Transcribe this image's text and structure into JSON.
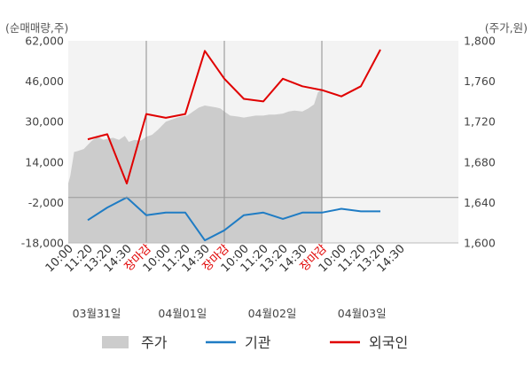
{
  "chart_data": {
    "type": "line",
    "left_axis_label": "(순매매량,주)",
    "right_axis_label": "(주가,원)",
    "left_ylim": [
      -18000,
      62000
    ],
    "left_ticks": [
      "62,000",
      "46,000",
      "30,000",
      "14,000",
      "-2,000",
      "-18,000"
    ],
    "left_tick_values": [
      62000,
      46000,
      30000,
      14000,
      -2000,
      -18000
    ],
    "right_ylim": [
      1600,
      1800
    ],
    "right_ticks": [
      "1,800",
      "1,760",
      "1,720",
      "1,680",
      "1,640",
      "1,600"
    ],
    "right_tick_values": [
      1800,
      1760,
      1720,
      1680,
      1640,
      1600
    ],
    "x_slots": 20,
    "x_tick_labels": [
      {
        "slot": 0,
        "text": "10:00",
        "color": "#333333"
      },
      {
        "slot": 1,
        "text": "11:20",
        "color": "#333333"
      },
      {
        "slot": 2,
        "text": "13:20",
        "color": "#333333"
      },
      {
        "slot": 3,
        "text": "14:30",
        "color": "#333333"
      },
      {
        "slot": 4,
        "text": "장마감",
        "color": "#e00000"
      },
      {
        "slot": 5,
        "text": "10:00",
        "color": "#333333"
      },
      {
        "slot": 6,
        "text": "11:20",
        "color": "#333333"
      },
      {
        "slot": 7,
        "text": "14:30",
        "color": "#333333"
      },
      {
        "slot": 8,
        "text": "장마감",
        "color": "#e00000"
      },
      {
        "slot": 9,
        "text": "10:00",
        "color": "#333333"
      },
      {
        "slot": 10,
        "text": "11:20",
        "color": "#333333"
      },
      {
        "slot": 11,
        "text": "13:20",
        "color": "#333333"
      },
      {
        "slot": 12,
        "text": "14:30",
        "color": "#333333"
      },
      {
        "slot": 13,
        "text": "장마감",
        "color": "#e00000"
      },
      {
        "slot": 14,
        "text": "10:00",
        "color": "#333333"
      },
      {
        "slot": 15,
        "text": "11:20",
        "color": "#333333"
      },
      {
        "slot": 16,
        "text": "13:20",
        "color": "#333333"
      },
      {
        "slot": 17,
        "text": "14:30",
        "color": "#333333"
      }
    ],
    "date_labels": [
      {
        "slot": 1.0,
        "text": "03월31일"
      },
      {
        "slot": 5.4,
        "text": "04월01일"
      },
      {
        "slot": 10.0,
        "text": "04월02일"
      },
      {
        "slot": 14.6,
        "text": "04월03일"
      }
    ],
    "day_dividers": [
      4,
      8,
      13
    ],
    "zero_value": 0,
    "series": [
      {
        "name": "주가",
        "axis": "right",
        "kind": "area",
        "color": "#cccccc",
        "x": [
          0,
          0.1,
          0.3,
          0.5,
          0.8,
          1.0,
          1.2,
          1.5,
          1.8,
          2.0,
          2.3,
          2.6,
          2.9,
          3.1,
          3.4,
          3.7,
          4.0,
          4.3,
          4.6,
          4.8,
          5.0,
          5.3,
          5.6,
          5.8,
          6.1,
          6.4,
          6.7,
          7.0,
          7.3,
          7.6,
          7.8,
          8.0,
          8.3,
          8.7,
          9.0,
          9.3,
          9.6,
          10.0,
          10.3,
          10.6,
          11.0,
          11.3,
          11.6,
          12.0,
          12.3,
          12.6,
          12.8,
          13.0
        ],
        "values": [
          1659,
          1666,
          1690,
          1691,
          1693,
          1697,
          1701,
          1705,
          1702,
          1703,
          1704,
          1702,
          1706,
          1700,
          1702,
          1701,
          1705,
          1707,
          1712,
          1716,
          1720,
          1722,
          1724,
          1725,
          1726,
          1730,
          1734,
          1736,
          1735,
          1734,
          1733,
          1730,
          1726,
          1725,
          1724,
          1725,
          1726,
          1726,
          1727,
          1727,
          1728,
          1730,
          1731,
          1730,
          1733,
          1737,
          1749,
          1752
        ]
      },
      {
        "name": "기관",
        "axis": "left",
        "kind": "line",
        "color": "#1f7cc4",
        "x": [
          1,
          2,
          3,
          4,
          5,
          6,
          7,
          8,
          9,
          10,
          11,
          12,
          13,
          14,
          15,
          16
        ],
        "values": [
          -9000,
          -4000,
          0,
          -7000,
          -6000,
          -6000,
          -17000,
          -13000,
          -7000,
          -6000,
          -8500,
          -6000,
          -6000,
          -4500,
          -5500,
          -5500
        ]
      },
      {
        "name": "외국인",
        "axis": "left",
        "kind": "line",
        "color": "#e00000",
        "x": [
          1,
          2,
          3,
          4,
          5,
          6,
          7,
          8,
          9,
          10,
          11,
          12,
          13,
          14,
          15,
          16
        ],
        "values": [
          23000,
          25000,
          5500,
          33000,
          31500,
          33000,
          58000,
          47000,
          39000,
          38000,
          47000,
          44000,
          42500,
          40000,
          44000,
          58500
        ]
      }
    ],
    "legend": [
      {
        "label": "주가",
        "kind": "area",
        "color": "#cccccc"
      },
      {
        "label": "기관",
        "kind": "line",
        "color": "#1f7cc4"
      },
      {
        "label": "외국인",
        "kind": "line",
        "color": "#e00000"
      }
    ]
  }
}
